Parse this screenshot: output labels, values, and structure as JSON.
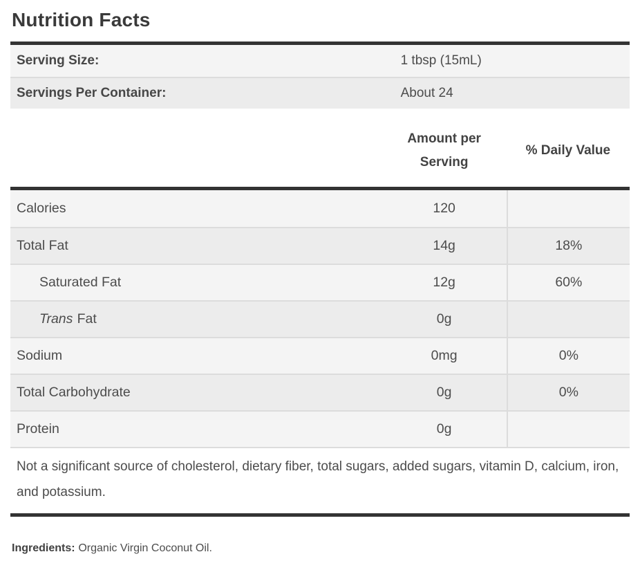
{
  "title": "Nutrition Facts",
  "serving_info": {
    "rows": [
      {
        "label": "Serving Size:",
        "value": "1 tbsp (15mL)"
      },
      {
        "label": "Servings Per Container:",
        "value": "About 24"
      }
    ]
  },
  "table": {
    "columns": {
      "amount_header": "Amount per Serving",
      "daily_value_header": "% Daily Value"
    },
    "rows": [
      {
        "label": "Calories",
        "amount": "120",
        "daily_value": ""
      },
      {
        "label": "Total Fat",
        "amount": "14g",
        "daily_value": "18%"
      },
      {
        "label": "Saturated Fat",
        "amount": "12g",
        "daily_value": "60%"
      },
      {
        "label_italic": "Trans",
        "label": "Fat",
        "amount": "0g",
        "daily_value": ""
      },
      {
        "label": "Sodium",
        "amount": "0mg",
        "daily_value": "0%"
      },
      {
        "label": "Total Carbohydrate",
        "amount": "0g",
        "daily_value": "0%"
      },
      {
        "label": "Protein",
        "amount": "0g",
        "daily_value": ""
      }
    ],
    "footnote": "Not a significant source of cholesterol, dietary fiber, total sugars, added sugars, vitamin D, calcium, iron, and potassium."
  },
  "ingredients": {
    "label": "Ingredients:",
    "value": "Organic Virgin Coconut Oil."
  },
  "colors": {
    "stripe_light": "#f4f4f4",
    "stripe_dark": "#ececec",
    "separator": "#dcdcdc",
    "rule_dark": "#333333",
    "text": "#4c4c4c",
    "title_text": "#3a3a3a"
  }
}
